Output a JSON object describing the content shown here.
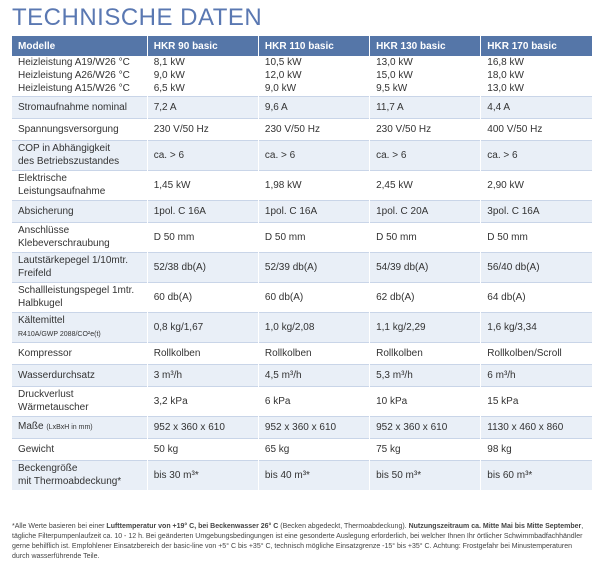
{
  "title": "TECHNISCHE DATEN",
  "header": [
    "Modelle",
    "HKR 90 basic",
    "HKR 110 basic",
    "HKR 130 basic",
    "HKR 170 basic"
  ],
  "rows": [
    {
      "label": "Heizleistung A19/W26 °C\nHeizleistung A26/W26 °C\nHeizleistung A15/W26 °C",
      "sub": "",
      "values": [
        "8,1 kW\n9,0 kW\n6,5 kW",
        "10,5 kW\n12,0 kW\n 9,0 kW",
        "13,0 kW\n15,0 kW\n 9,5 kW",
        "16,8 kW\n18,0 kW\n13,0 kW"
      ]
    },
    {
      "label": "Stromaufnahme nominal",
      "sub": "",
      "values": [
        "7,2 A",
        "9,6 A",
        "11,7 A",
        "4,4 A"
      ]
    },
    {
      "label": "Spannungsversorgung",
      "sub": "",
      "values": [
        "230 V/50 Hz",
        "230 V/50 Hz",
        "230 V/50 Hz",
        "400 V/50 Hz"
      ]
    },
    {
      "label": "COP in Abhängigkeit\ndes Betriebszustandes",
      "sub": "",
      "values": [
        "ca. > 6",
        "ca. > 6",
        "ca. > 6",
        "ca. > 6"
      ]
    },
    {
      "label": "Elektrische\nLeistungsaufnahme",
      "sub": "",
      "values": [
        "1,45 kW",
        "1,98 kW",
        "2,45 kW",
        "2,90 kW"
      ]
    },
    {
      "label": "Absicherung",
      "sub": "",
      "values": [
        "1pol. C 16A",
        "1pol. C 16A",
        "1pol. C 20A",
        "3pol. C 16A"
      ]
    },
    {
      "label": "Anschlüsse\nKlebeverschraubung",
      "sub": "",
      "values": [
        "D 50 mm",
        "D 50 mm",
        "D 50 mm",
        "D 50 mm"
      ]
    },
    {
      "label": "Lautstärkepegel 1/10mtr.\nFreifeld",
      "sub": "",
      "values": [
        "52/38 db(A)",
        "52/39 db(A)",
        "54/39 db(A)",
        "56/40 db(A)"
      ]
    },
    {
      "label": "Schallleistungspegel 1mtr.\nHalbkugel",
      "sub": "",
      "values": [
        "60 db(A)",
        "60 db(A)",
        "62 db(A)",
        "64 db(A)"
      ]
    },
    {
      "label": "Kältemittel",
      "sub": "R410A/GWP 2088/CO²e(t)",
      "values": [
        "0,8 kg/1,67",
        "1,0 kg/2,08",
        "1,1 kg/2,29",
        "1,6 kg/3,34"
      ]
    },
    {
      "label": "Kompressor",
      "sub": "",
      "values": [
        "Rollkolben",
        "Rollkolben",
        "Rollkolben",
        "Rollkolben/Scroll"
      ]
    },
    {
      "label": "Wasserdurchsatz",
      "sub": "",
      "values": [
        "3 m³/h",
        "4,5 m³/h",
        "5,3 m³/h",
        "6 m³/h"
      ]
    },
    {
      "label": "Druckverlust\nWärmetauscher",
      "sub": "",
      "values": [
        "3,2 kPa",
        "6 kPa",
        "10 kPa",
        "15 kPa"
      ]
    },
    {
      "label": "Maße",
      "sub": "(LxBxH in mm)",
      "values": [
        "952 x 360 x 610",
        "952 x 360 x 610",
        "952 x 360 x 610",
        "1130 x 460 x 860"
      ]
    },
    {
      "label": "Gewicht",
      "sub": "",
      "values": [
        "50 kg",
        "65 kg",
        "75 kg",
        "98 kg"
      ]
    },
    {
      "label": "Beckengröße\nmit Thermoabdeckung*",
      "sub": "",
      "values": [
        "bis 30 m³*",
        "bis 40 m³*",
        "bis 50 m³*",
        "bis 60 m³*"
      ]
    }
  ],
  "footnote": [
    {
      "text": "*Alle Werte basieren bei einer ",
      "bold": false
    },
    {
      "text": "Lufttemperatur von +19° C, bei Beckenwasser 26° C",
      "bold": true
    },
    {
      "text": " (Becken abgedeckt, Thermoabdeckung). ",
      "bold": false
    },
    {
      "text": "Nutzungszeitraum ca. Mitte Mai bis Mitte September",
      "bold": true
    },
    {
      "text": ", tägliche Filterpumpenlaufzeit ca. 10 - 12 h. Bei geänderten Umgebungsbedingungen ist eine gesonderte Auslegung erforderlich, bei welcher Ihnen Ihr örtlicher Schwimmbadfachhändler gerne behilflich ist. Empfohlener Einsatzbereich der basic-line von +5° C bis +35° C, technisch mögliche Einsatzgrenze -15° bis +35° C. Achtung: Frostgefahr bei Minustemperaturen durch wasserführende Teile.",
      "bold": false
    }
  ]
}
